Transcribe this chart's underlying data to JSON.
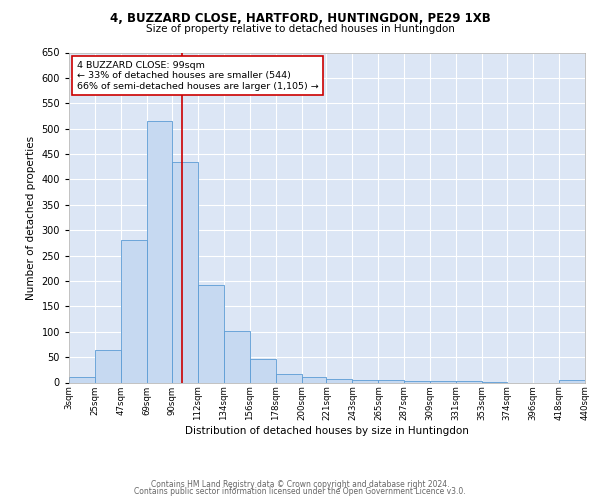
{
  "title1": "4, BUZZARD CLOSE, HARTFORD, HUNTINGDON, PE29 1XB",
  "title2": "Size of property relative to detached houses in Huntingdon",
  "xlabel": "Distribution of detached houses by size in Huntingdon",
  "ylabel": "Number of detached properties",
  "footnote1": "Contains HM Land Registry data © Crown copyright and database right 2024.",
  "footnote2": "Contains public sector information licensed under the Open Government Licence v3.0.",
  "bin_edges": [
    3,
    25,
    47,
    69,
    90,
    112,
    134,
    156,
    178,
    200,
    221,
    243,
    265,
    287,
    309,
    331,
    353,
    374,
    396,
    418,
    440
  ],
  "bar_heights": [
    10,
    65,
    280,
    515,
    435,
    193,
    101,
    47,
    17,
    10,
    7,
    5,
    4,
    3,
    2,
    2,
    1,
    0,
    0,
    5
  ],
  "bar_color": "#c6d9f1",
  "bar_edge_color": "#5b9bd5",
  "bg_color": "#dce6f5",
  "grid_color": "#ffffff",
  "vline_x": 99,
  "vline_color": "#cc0000",
  "annotation_title": "4 BUZZARD CLOSE: 99sqm",
  "annotation_line2": "← 33% of detached houses are smaller (544)",
  "annotation_line3": "66% of semi-detached houses are larger (1,105) →",
  "annotation_box_color": "#ffffff",
  "annotation_border_color": "#cc0000",
  "ylim": [
    0,
    650
  ],
  "yticks": [
    0,
    50,
    100,
    150,
    200,
    250,
    300,
    350,
    400,
    450,
    500,
    550,
    600,
    650
  ],
  "tick_labels": [
    "3sqm",
    "25sqm",
    "47sqm",
    "69sqm",
    "90sqm",
    "112sqm",
    "134sqm",
    "156sqm",
    "178sqm",
    "200sqm",
    "221sqm",
    "243sqm",
    "265sqm",
    "287sqm",
    "309sqm",
    "331sqm",
    "353sqm",
    "374sqm",
    "396sqm",
    "418sqm",
    "440sqm"
  ]
}
